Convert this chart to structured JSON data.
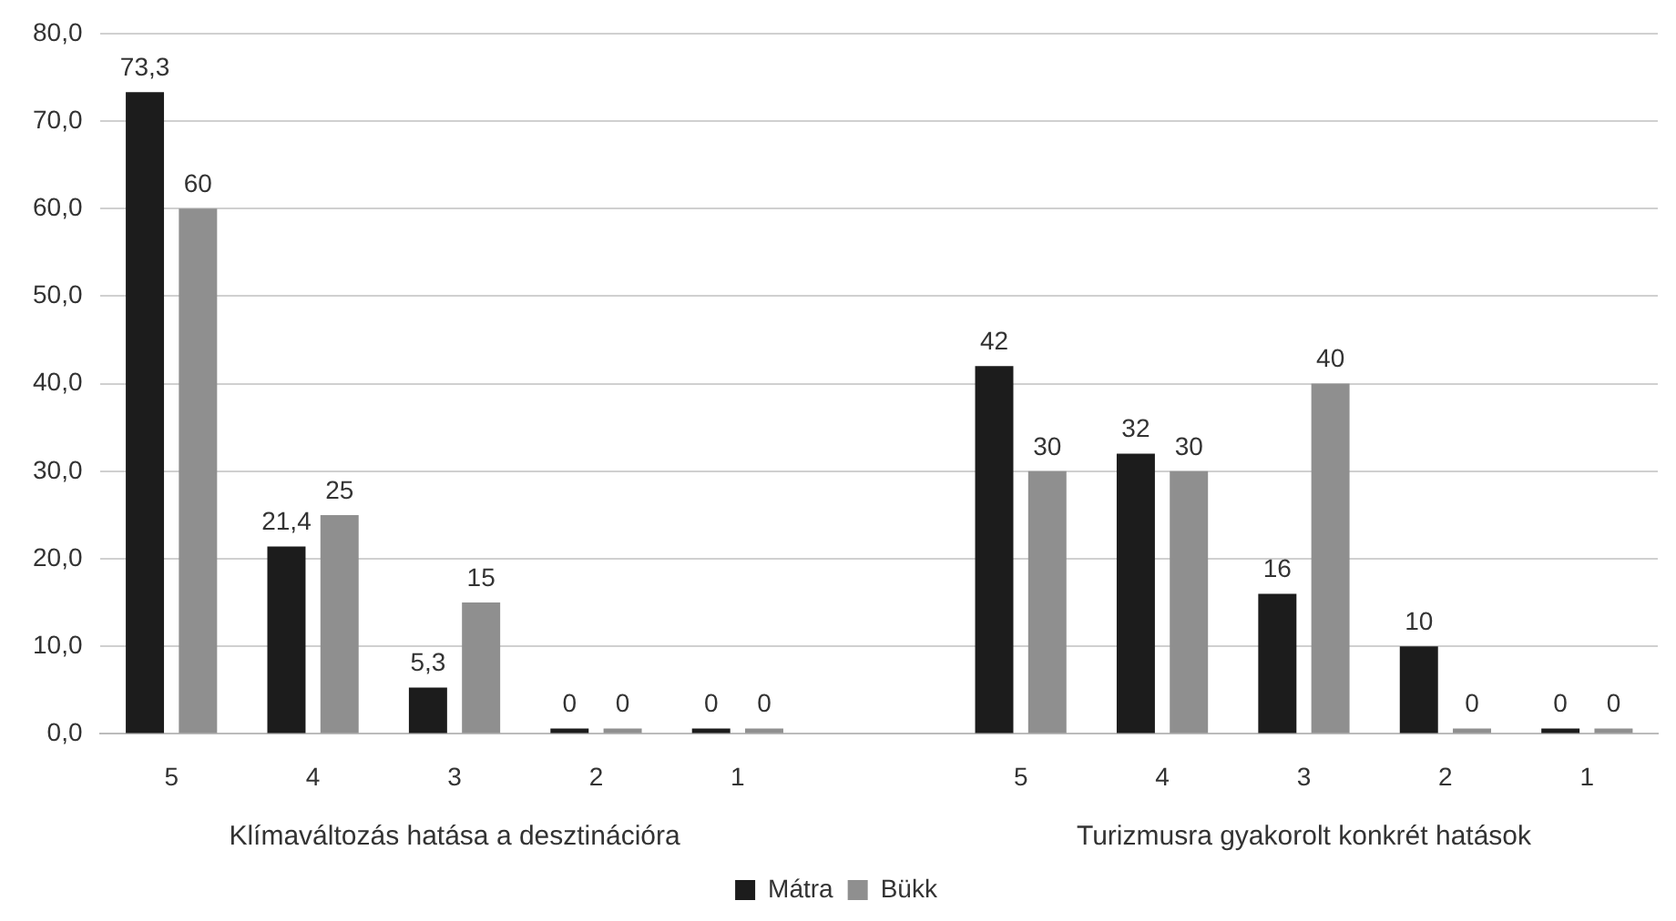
{
  "chart_data": {
    "type": "bar",
    "categories": [
      "5",
      "4",
      "3",
      "2",
      "1",
      null,
      "5",
      "4",
      "3",
      "2",
      "1"
    ],
    "series": [
      {
        "name": "Mátra",
        "color": "#1c1c1c",
        "values": [
          73.3,
          21.4,
          5.3,
          0,
          0,
          null,
          42,
          32,
          16,
          10,
          0
        ],
        "value_labels": [
          "73,3",
          "21,4",
          "5,3",
          "0",
          "0",
          null,
          "42",
          "32",
          "16",
          "10",
          "0"
        ]
      },
      {
        "name": "Bükk",
        "color": "#8f8f8f",
        "values": [
          60,
          25,
          15,
          0,
          0,
          null,
          30,
          30,
          40,
          0,
          0
        ],
        "value_labels": [
          "60",
          "25",
          "15",
          "0",
          "0",
          null,
          "30",
          "30",
          "40",
          "0",
          "0"
        ]
      }
    ],
    "annotations": [
      "Klímaváltozás hatása a desztinációra",
      "Turizmusra gyakorolt konkrét hatások"
    ],
    "ylim": [
      0,
      80
    ],
    "yticks": [
      {
        "value": 0,
        "label": "0,0"
      },
      {
        "value": 10,
        "label": "10,0"
      },
      {
        "value": 20,
        "label": "20,0"
      },
      {
        "value": 30,
        "label": "30,0"
      },
      {
        "value": 40,
        "label": "40,0"
      },
      {
        "value": 50,
        "label": "50,0"
      },
      {
        "value": 60,
        "label": "60,0"
      },
      {
        "value": 70,
        "label": "70,0"
      },
      {
        "value": 80,
        "label": "80,0"
      }
    ],
    "grid": "y",
    "legend": "bottom"
  }
}
